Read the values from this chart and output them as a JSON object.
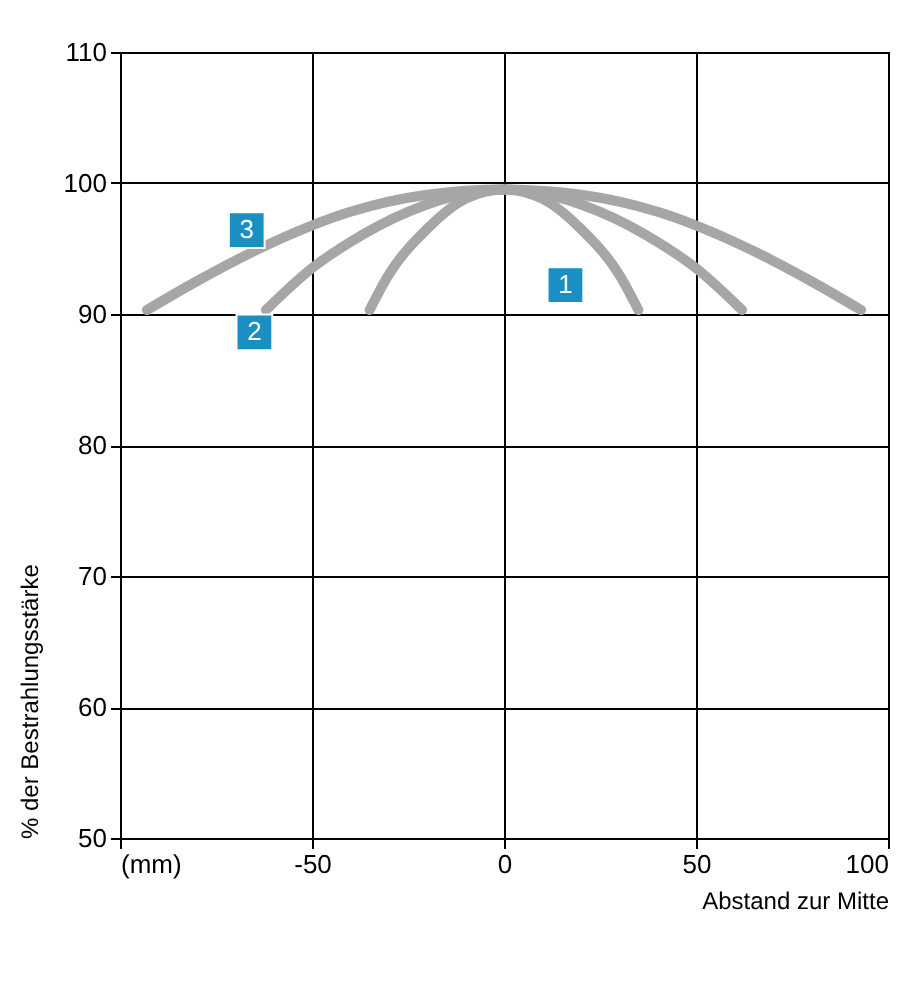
{
  "chart_data": {
    "type": "line",
    "xlabel": "Abstand zur Mitte",
    "ylabel": "% der Bestrahlungsstärke",
    "xlim": [
      -100,
      100
    ],
    "xticks": [
      {
        "value": -100,
        "label": "(mm)"
      },
      -50,
      0,
      50,
      100
    ],
    "ylim": [
      50,
      110
    ],
    "yticks": [
      50,
      60,
      70,
      80,
      90,
      100,
      110
    ],
    "grid": true,
    "legend": false,
    "line_style": "solid",
    "marker": "none",
    "series": [
      {
        "color": "#a6a6a6",
        "x": [
          -35,
          -30,
          -20,
          -10,
          0,
          10,
          20,
          30,
          35
        ],
        "values": [
          90.3,
          93,
          96.5,
          98.8,
          99.5,
          98.8,
          96.5,
          93,
          90.3
        ]
      },
      {
        "color": "#a6a6a6",
        "x": [
          -62,
          -50,
          -40,
          -25,
          -10,
          0,
          10,
          25,
          40,
          50,
          62
        ],
        "values": [
          90.3,
          93.5,
          95.5,
          97.8,
          99.2,
          99.5,
          99.2,
          97.8,
          95.5,
          93.5,
          90.3
        ]
      },
      {
        "color": "#a6a6a6",
        "x": [
          -93,
          -80,
          -60,
          -40,
          -20,
          0,
          20,
          40,
          60,
          80,
          93
        ],
        "values": [
          90.3,
          92.5,
          95.5,
          97.8,
          99.1,
          99.5,
          99.1,
          97.8,
          95.5,
          92.5,
          90.3
        ]
      }
    ],
    "annotations": [
      {
        "text": "1",
        "x": 16,
        "y": 92.2
      },
      {
        "text": "2",
        "x": -65,
        "y": 88.6
      },
      {
        "text": "3",
        "x": -67,
        "y": 96.4
      }
    ]
  }
}
